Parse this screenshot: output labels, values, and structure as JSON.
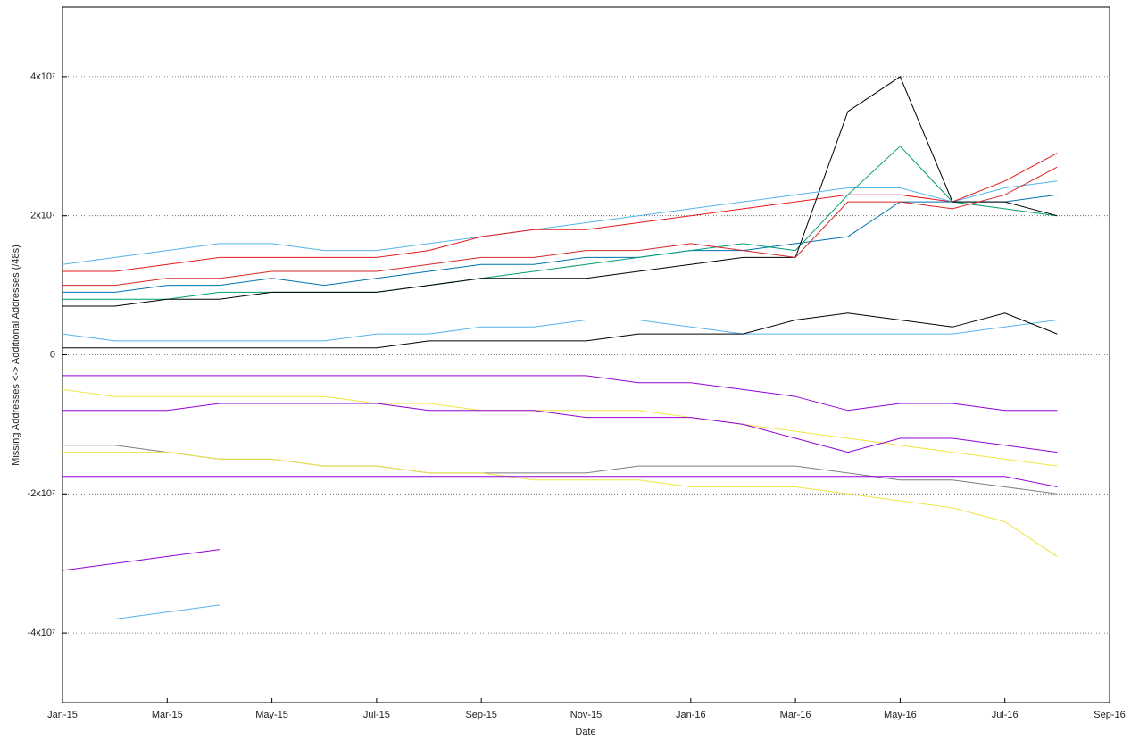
{
  "chart_data": {
    "type": "line",
    "x_label": "Date",
    "y_label": "Missing Addresses <-> Additional Addresses (/48s)",
    "x": [
      "2015-01",
      "2015-02",
      "2015-03",
      "2015-04",
      "2015-05",
      "2015-06",
      "2015-07",
      "2015-08",
      "2015-09",
      "2015-10",
      "2015-11",
      "2015-12",
      "2016-01",
      "2016-02",
      "2016-03",
      "2016-04",
      "2016-05",
      "2016-06",
      "2016-07",
      "2016-08"
    ],
    "xlim": [
      "2015-01",
      "2016-09"
    ],
    "xticks": [
      {
        "value": "2015-01",
        "label": "Jan-15"
      },
      {
        "value": "2015-03",
        "label": "Mar-15"
      },
      {
        "value": "2015-05",
        "label": "May-15"
      },
      {
        "value": "2015-07",
        "label": "Jul-15"
      },
      {
        "value": "2015-09",
        "label": "Sep-15"
      },
      {
        "value": "2015-11",
        "label": "Nov-15"
      },
      {
        "value": "2016-01",
        "label": "Jan-16"
      },
      {
        "value": "2016-03",
        "label": "Mar-16"
      },
      {
        "value": "2016-05",
        "label": "May-16"
      },
      {
        "value": "2016-07",
        "label": "Jul-16"
      },
      {
        "value": "2016-09",
        "label": "Sep-16"
      }
    ],
    "ylim": [
      -50000000,
      50000000
    ],
    "yticks": [
      {
        "value": -40000000,
        "label": "-4x10⁷"
      },
      {
        "value": -20000000,
        "label": "-2x10⁷"
      },
      0,
      {
        "value": 20000000,
        "label": "2x10⁷"
      },
      {
        "value": 40000000,
        "label": "4x10⁷"
      }
    ],
    "grid": true,
    "series": [
      {
        "color": "#56b4e9",
        "values": [
          13000000,
          14000000,
          15000000,
          16000000,
          16000000,
          15000000,
          15000000,
          16000000,
          17000000,
          18000000,
          19000000,
          20000000,
          21000000,
          22000000,
          23000000,
          24000000,
          24000000,
          22000000,
          24000000,
          25000000
        ]
      },
      {
        "color": "#e41a1c",
        "values": [
          12000000,
          12000000,
          13000000,
          14000000,
          14000000,
          14000000,
          14000000,
          15000000,
          17000000,
          18000000,
          18000000,
          19000000,
          20000000,
          21000000,
          22000000,
          23000000,
          23000000,
          22000000,
          25000000,
          29000000
        ]
      },
      {
        "color": "#0072b2",
        "values": [
          9000000,
          9000000,
          10000000,
          10000000,
          11000000,
          10000000,
          11000000,
          12000000,
          13000000,
          13000000,
          14000000,
          14000000,
          15000000,
          15000000,
          16000000,
          17000000,
          22000000,
          22000000,
          22000000,
          23000000
        ]
      },
      {
        "color": "#009e73",
        "values": [
          8000000,
          8000000,
          8000000,
          9000000,
          9000000,
          9000000,
          9000000,
          10000000,
          11000000,
          12000000,
          13000000,
          14000000,
          15000000,
          16000000,
          15000000,
          23000000,
          30000000,
          22000000,
          21000000,
          20000000
        ]
      },
      {
        "color": "#000000",
        "values": [
          7000000,
          7000000,
          8000000,
          8000000,
          9000000,
          9000000,
          9000000,
          10000000,
          11000000,
          11000000,
          11000000,
          12000000,
          13000000,
          14000000,
          14000000,
          35000000,
          40000000,
          22000000,
          22000000,
          20000000
        ]
      },
      {
        "color": "#d62728",
        "values": [
          10000000,
          10000000,
          11000000,
          11000000,
          12000000,
          12000000,
          12000000,
          13000000,
          14000000,
          14000000,
          15000000,
          15000000,
          16000000,
          15000000,
          14000000,
          22000000,
          22000000,
          21000000,
          23000000,
          27000000
        ]
      },
      {
        "color": "#56b4e9",
        "values": [
          3000000,
          2000000,
          2000000,
          2000000,
          2000000,
          2000000,
          3000000,
          3000000,
          4000000,
          4000000,
          5000000,
          5000000,
          4000000,
          3000000,
          3000000,
          3000000,
          3000000,
          3000000,
          4000000,
          5000000
        ]
      },
      {
        "color": "#000000",
        "values": [
          1000000,
          1000000,
          1000000,
          1000000,
          1000000,
          1000000,
          1000000,
          2000000,
          2000000,
          2000000,
          2000000,
          3000000,
          3000000,
          3000000,
          5000000,
          6000000,
          5000000,
          4000000,
          6000000,
          3000000
        ]
      },
      {
        "color": "#9400d3",
        "values": [
          -3000000,
          -3000000,
          -3000000,
          -3000000,
          -3000000,
          -3000000,
          -3000000,
          -3000000,
          -3000000,
          -3000000,
          -3000000,
          -4000000,
          -4000000,
          -5000000,
          -6000000,
          -8000000,
          -7000000,
          -7000000,
          -8000000,
          -8000000
        ]
      },
      {
        "color": "#f0e442",
        "values": [
          -5000000,
          -6000000,
          -6000000,
          -6000000,
          -6000000,
          -6000000,
          -7000000,
          -7000000,
          -8000000,
          -8000000,
          -8000000,
          -8000000,
          -9000000,
          -10000000,
          -11000000,
          -12000000,
          -13000000,
          -14000000,
          -15000000,
          -16000000
        ]
      },
      {
        "color": "#9400d3",
        "values": [
          -8000000,
          -8000000,
          -8000000,
          -7000000,
          -7000000,
          -7000000,
          -7000000,
          -8000000,
          -8000000,
          -8000000,
          -9000000,
          -9000000,
          -9000000,
          -10000000,
          -12000000,
          -14000000,
          -12000000,
          -12000000,
          -13000000,
          -14000000
        ]
      },
      {
        "color": "#7f7f7f",
        "values": [
          -13000000,
          -13000000,
          -14000000,
          -15000000,
          -15000000,
          -16000000,
          -16000000,
          -17000000,
          -17000000,
          -17000000,
          -17000000,
          -16000000,
          -16000000,
          -16000000,
          -16000000,
          -17000000,
          -18000000,
          -18000000,
          -19000000,
          -20000000
        ]
      },
      {
        "color": "#f0e442",
        "values": [
          -14000000,
          -14000000,
          -14000000,
          -15000000,
          -15000000,
          -16000000,
          -16000000,
          -17000000,
          -17000000,
          -18000000,
          -18000000,
          -18000000,
          -19000000,
          -19000000,
          -19000000,
          -20000000,
          -21000000,
          -22000000,
          -24000000,
          -29000000
        ]
      },
      {
        "color": "#9400d3",
        "values": [
          -17500000,
          -17500000,
          -17500000,
          -17500000,
          -17500000,
          -17500000,
          -17500000,
          -17500000,
          -17500000,
          -17500000,
          -17500000,
          -17500000,
          -17500000,
          -17500000,
          -17500000,
          -17500000,
          -17500000,
          -17500000,
          -17500000,
          -19000000
        ]
      },
      {
        "color": "#9400d3",
        "values": [
          -31000000,
          -30000000,
          -29000000,
          -28000000,
          null,
          null,
          null,
          null,
          null,
          null,
          null,
          null,
          null,
          null,
          null,
          null,
          null,
          null,
          null,
          null
        ]
      },
      {
        "color": "#56b4e9",
        "values": [
          -38000000,
          -38000000,
          -37000000,
          -36000000,
          null,
          null,
          null,
          null,
          null,
          null,
          null,
          null,
          null,
          null,
          null,
          null,
          null,
          null,
          null,
          null
        ]
      }
    ]
  }
}
